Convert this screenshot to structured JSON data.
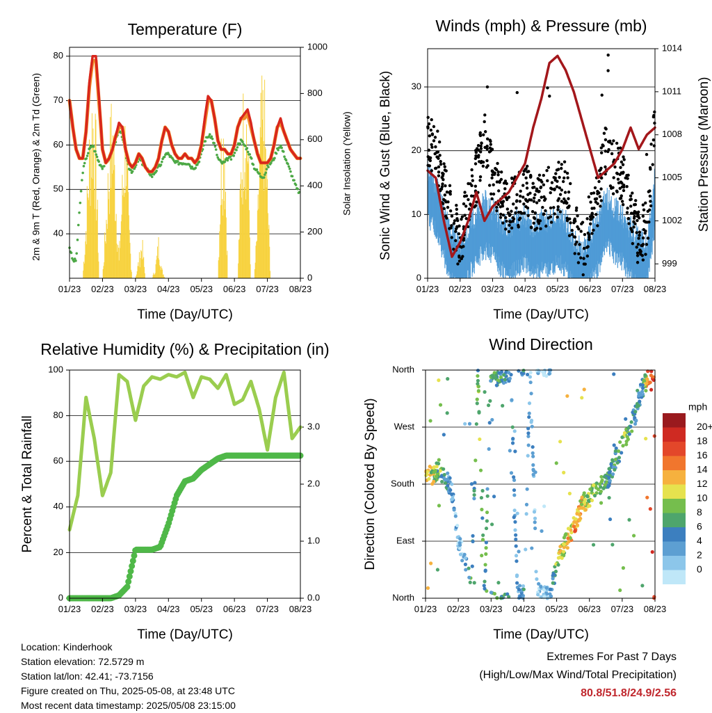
{
  "x_ticks": [
    "01/23",
    "02/23",
    "03/23",
    "04/23",
    "05/23",
    "06/23",
    "07/23",
    "08/23"
  ],
  "colors": {
    "temp_red": "#d8261c",
    "temp_orange": "#f08c2a",
    "dewpoint": "#4ca845",
    "solar": "#f7d23e",
    "wind": "#4f9bd6",
    "gust": "#000000",
    "pressure": "#a3171b",
    "rh": "#9acd4f",
    "precip": "#4fb848",
    "speed_scale": [
      "#bfe7f8",
      "#8cc6ea",
      "#5d9fd2",
      "#3c7fbf",
      "#4ea56c",
      "#75be4d",
      "#e6e24e",
      "#f6b13e",
      "#f1762d",
      "#e3472a",
      "#cf2a22",
      "#9a1a1e"
    ]
  },
  "panels": {
    "temperature": {
      "title": "Temperature (F)",
      "ylabel": "2m & 9m T (Red, Orange) & 2m Td (Green)",
      "y2label": "Solar Insolation (Yellow)",
      "xlabel": "Time (Day/UTC)",
      "yticks": [
        "40",
        "50",
        "60",
        "70",
        "80"
      ],
      "y2ticks": [
        "0",
        "200",
        "400",
        "600",
        "800",
        "1000"
      ]
    },
    "winds": {
      "title": "Winds (mph) & Pressure (mb)",
      "ylabel": "Sonic Wind & Gust (Blue, Black)",
      "y2label": "Station Pressure (Maroon)",
      "xlabel": "Time (Day/UTC)",
      "yticks": [
        "0",
        "10",
        "20",
        "30"
      ],
      "y2ticks": [
        "999",
        "1002",
        "1005",
        "1008",
        "1011",
        "1014"
      ]
    },
    "humidity": {
      "title": "Relative Humidity (%) & Precipitation (in)",
      "ylabel": "Percent & Total Rainfall",
      "xlabel": "Time (Day/UTC)",
      "yticks": [
        "0",
        "20",
        "40",
        "60",
        "80",
        "100"
      ],
      "y2ticks": [
        "0.0",
        "1.0",
        "2.0",
        "3.0"
      ]
    },
    "direction": {
      "title": "Wind Direction",
      "ylabel": "Direction (Colored By Speed)",
      "xlabel": "Time (Day/UTC)",
      "yticks": [
        "North",
        "East",
        "South",
        "West",
        "North"
      ],
      "legend_title": "mph",
      "legend_labels": [
        "0",
        "2",
        "4",
        "6",
        "8",
        "10",
        "12",
        "14",
        "16",
        "18",
        "20+"
      ]
    }
  },
  "chart_data": [
    {
      "type": "line",
      "title": "Temperature (F)",
      "ylim": [
        30,
        82
      ],
      "y2lim": [
        0,
        1000
      ],
      "x": [
        0,
        0.1,
        0.2,
        0.3,
        0.4,
        0.5,
        0.6,
        0.7,
        0.8,
        0.9,
        1.0,
        1.1,
        1.2,
        1.3,
        1.4,
        1.5,
        1.6,
        1.7,
        1.8,
        1.9,
        2.0,
        2.1,
        2.2,
        2.3,
        2.4,
        2.5,
        2.6,
        2.7,
        2.8,
        2.9,
        3.0,
        3.1,
        3.2,
        3.3,
        3.4,
        3.5,
        3.6,
        3.7,
        3.8,
        3.9,
        4.0,
        4.1,
        4.2,
        4.3,
        4.4,
        4.5,
        4.6,
        4.7,
        4.8,
        4.9,
        5.0,
        5.1,
        5.2,
        5.3,
        5.4,
        5.5,
        5.6,
        5.7,
        5.8,
        5.9,
        6.0,
        6.1,
        6.2,
        6.3,
        6.4,
        6.5,
        6.6,
        6.7,
        6.8,
        6.9,
        7.0
      ],
      "series": [
        {
          "name": "2m T",
          "values": [
            70,
            64,
            59,
            57,
            57,
            63,
            74,
            80,
            80,
            70,
            59,
            56,
            57,
            59,
            62,
            65,
            64,
            59,
            56,
            55,
            56,
            58,
            57,
            55,
            54,
            54,
            55,
            57,
            61,
            64,
            63,
            60,
            58,
            57,
            57,
            58,
            57,
            57,
            56,
            57,
            60,
            66,
            71,
            70,
            66,
            61,
            59,
            59,
            58,
            58,
            60,
            64,
            66,
            67,
            68,
            65,
            61,
            58,
            56,
            56,
            56,
            57,
            60,
            64,
            66,
            63,
            61,
            59,
            58,
            57,
            57
          ]
        },
        {
          "name": "9m T",
          "values": [
            70,
            64,
            59,
            57,
            57,
            63,
            73,
            79,
            79,
            69,
            59,
            56,
            57,
            59,
            62,
            64,
            64,
            59,
            56,
            55,
            56,
            58,
            57,
            55,
            54,
            54,
            55,
            57,
            61,
            64,
            63,
            60,
            58,
            57,
            57,
            58,
            57,
            57,
            56,
            57,
            60,
            65,
            70,
            70,
            66,
            61,
            59,
            59,
            58,
            58,
            60,
            64,
            66,
            66,
            67,
            64,
            61,
            58,
            56,
            56,
            56,
            57,
            60,
            64,
            65,
            63,
            61,
            59,
            58,
            57,
            57
          ]
        },
        {
          "name": "2m Td",
          "values": [
            37,
            34,
            34,
            45,
            54,
            57,
            59,
            60,
            58,
            56,
            55,
            56,
            57,
            59,
            61,
            63,
            62,
            58,
            55,
            54,
            55,
            57,
            56,
            55,
            54,
            53,
            54,
            55,
            56,
            58,
            58,
            57,
            56,
            56,
            56,
            56,
            56,
            55,
            55,
            56,
            58,
            61,
            62,
            62,
            60,
            57,
            56,
            56,
            57,
            57,
            58,
            60,
            61,
            60,
            59,
            57,
            55,
            54,
            53,
            53,
            55,
            56,
            57,
            59,
            60,
            58,
            56,
            54,
            52,
            50,
            49
          ]
        },
        {
          "name": "Solar",
          "axis": "y2",
          "values": [
            0,
            0,
            0,
            0,
            0,
            300,
            700,
            950,
            700,
            0,
            0,
            300,
            650,
            900,
            500,
            100,
            500,
            850,
            300,
            0,
            0,
            100,
            200,
            0,
            0,
            0,
            50,
            200,
            50,
            0,
            0,
            0,
            0,
            0,
            0,
            0,
            0,
            0,
            0,
            0,
            0,
            0,
            0,
            0,
            0,
            0,
            700,
            850,
            0,
            0,
            0,
            0,
            600,
            1000,
            850,
            0,
            0,
            300,
            850,
            950,
            500,
            0,
            0,
            0,
            0,
            0,
            0,
            0,
            0,
            0,
            0
          ]
        }
      ]
    },
    {
      "type": "line",
      "title": "Winds (mph) & Pressure (mb)",
      "ylim": [
        0,
        36
      ],
      "y2lim": [
        998,
        1014
      ],
      "x": [
        0,
        0.25,
        0.5,
        0.75,
        1.0,
        1.25,
        1.5,
        1.75,
        2.0,
        2.25,
        2.5,
        2.75,
        3.0,
        3.25,
        3.5,
        3.75,
        4.0,
        4.25,
        4.5,
        4.75,
        5.0,
        5.25,
        5.5,
        5.75,
        6.0,
        6.25,
        6.5,
        6.75,
        7.0
      ],
      "series": [
        {
          "name": "Sonic Wind",
          "values": [
            14,
            12,
            8,
            4,
            2,
            5,
            7,
            9,
            8,
            6,
            5,
            6,
            7,
            5,
            6,
            6,
            7,
            6,
            3,
            1,
            4,
            6,
            10,
            8,
            7,
            5,
            3,
            3,
            13
          ]
        },
        {
          "name": "Gust",
          "values": [
            22,
            20,
            15,
            10,
            5,
            12,
            16,
            22,
            16,
            13,
            11,
            12,
            14,
            11,
            12,
            13,
            14,
            14,
            8,
            4,
            9,
            13,
            21,
            17,
            16,
            11,
            6,
            8,
            24
          ]
        },
        {
          "name": "Station Pressure",
          "axis": "y2",
          "values": [
            1005.5,
            1005,
            1002,
            999.5,
            1000.5,
            1002,
            1004,
            1002,
            1003,
            1003.5,
            1004,
            1005,
            1006,
            1008.5,
            1010.5,
            1013,
            1013.5,
            1012.5,
            1011,
            1009,
            1007,
            1005,
            1005.5,
            1006,
            1007,
            1008.5,
            1007,
            1008,
            1008.5
          ]
        }
      ]
    },
    {
      "type": "line",
      "title": "Relative Humidity (%) & Precipitation (in)",
      "ylim": [
        0,
        100
      ],
      "y2lim": [
        0,
        4
      ],
      "x": [
        0,
        0.25,
        0.5,
        0.75,
        1.0,
        1.25,
        1.5,
        1.75,
        2.0,
        2.25,
        2.5,
        2.75,
        3.0,
        3.25,
        3.5,
        3.75,
        4.0,
        4.25,
        4.5,
        4.75,
        5.0,
        5.25,
        5.5,
        5.75,
        6.0,
        6.25,
        6.5,
        6.75,
        7.0
      ],
      "series": [
        {
          "name": "RH",
          "values": [
            30,
            45,
            88,
            70,
            45,
            55,
            98,
            95,
            78,
            93,
            97,
            96,
            98,
            97,
            99,
            88,
            97,
            96,
            92,
            98,
            85,
            87,
            95,
            83,
            65,
            88,
            99,
            70,
            75
          ]
        },
        {
          "name": "Total Precipitation",
          "axis": "y2",
          "values": [
            0,
            0,
            0,
            0,
            0,
            0,
            0.05,
            0.2,
            0.85,
            0.85,
            0.85,
            0.9,
            1.3,
            1.8,
            2.05,
            2.1,
            2.25,
            2.35,
            2.45,
            2.5,
            2.5,
            2.5,
            2.5,
            2.5,
            2.5,
            2.5,
            2.5,
            2.5,
            2.5
          ]
        }
      ]
    },
    {
      "type": "scatter",
      "title": "Wind Direction",
      "yticks": [
        "North",
        "East",
        "South",
        "West",
        "North"
      ],
      "x": [
        0,
        0.2,
        0.4,
        0.6,
        0.8,
        1.0,
        1.2,
        1.4,
        1.6,
        1.8,
        2.0,
        2.2,
        2.4,
        2.6,
        2.8,
        3.0,
        3.2,
        3.4,
        3.6,
        3.8,
        4.0,
        4.2,
        4.4,
        4.6,
        4.8,
        5.0,
        5.2,
        5.4,
        5.6,
        5.8,
        6.0,
        6.2,
        6.4,
        6.6,
        6.8,
        7.0
      ],
      "series": [
        {
          "name": "direction_deg",
          "values": [
            195,
            195,
            205,
            190,
            170,
            90,
            60,
            20,
            355,
            5,
            355,
            350,
            355,
            355,
            10,
            5,
            355,
            10,
            5,
            5,
            50,
            80,
            100,
            120,
            150,
            160,
            170,
            180,
            190,
            220,
            240,
            265,
            290,
            330,
            350,
            358
          ]
        },
        {
          "name": "speed_mph",
          "values": [
            14,
            12,
            10,
            8,
            5,
            3,
            4,
            8,
            10,
            9,
            8,
            9,
            7,
            6,
            5,
            6,
            4,
            3,
            2,
            5,
            12,
            12,
            14,
            16,
            13,
            11,
            10,
            9,
            8,
            8,
            10,
            9,
            8,
            6,
            18,
            20
          ]
        }
      ]
    }
  ],
  "info": {
    "location": "Location: Kinderhook",
    "elevation": "Station elevation: 72.5729 m",
    "latlon": "Station lat/lon: 42.41; -73.7156",
    "created": "Figure created on Thu, 2025-05-08, at 23:48 UTC",
    "recent": "Most recent data timestamp: 2025/05/08 23:15:00"
  },
  "extremes": {
    "title": "Extremes For Past 7 Days",
    "subtitle": "(High/Low/Max Wind/Total Precipitation)",
    "values": "80.8/51.8/24.9/2.56"
  }
}
